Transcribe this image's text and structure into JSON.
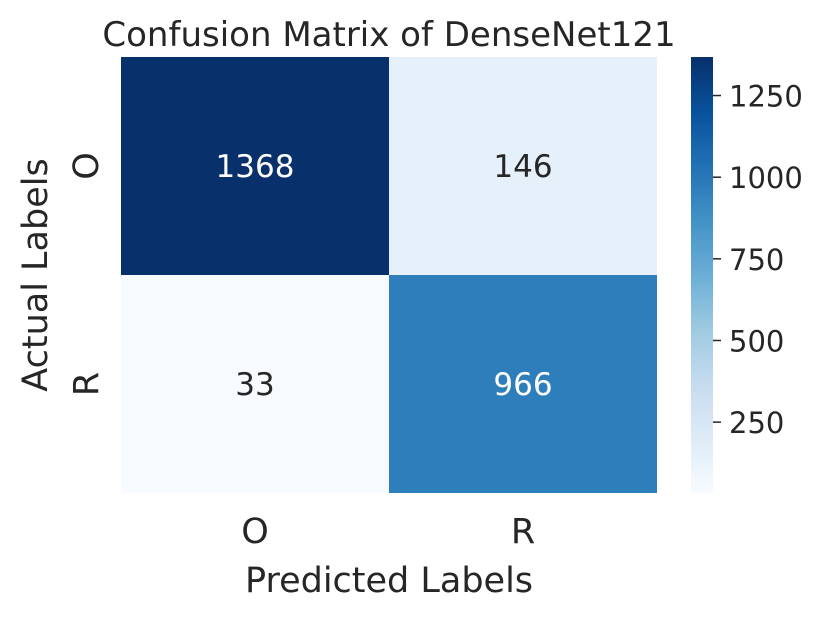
{
  "chart_data": {
    "type": "heatmap",
    "title": "Confusion Matrix of DenseNet121",
    "xlabel": "Predicted Labels",
    "ylabel": "Actual Labels",
    "x_categories": [
      "O",
      "R"
    ],
    "y_categories": [
      "O",
      "R"
    ],
    "values": [
      [
        1368,
        146
      ],
      [
        33,
        966
      ]
    ],
    "colormap": "Blues",
    "colorbar": {
      "range": [
        33,
        1368
      ],
      "ticks": [
        250,
        500,
        750,
        1000,
        1250
      ],
      "tick_labels": [
        "250",
        "500",
        "750",
        "1000",
        "1250"
      ]
    },
    "text_colors": {
      "dark_cell": "#ffffff",
      "light_cell": "#262626"
    }
  }
}
